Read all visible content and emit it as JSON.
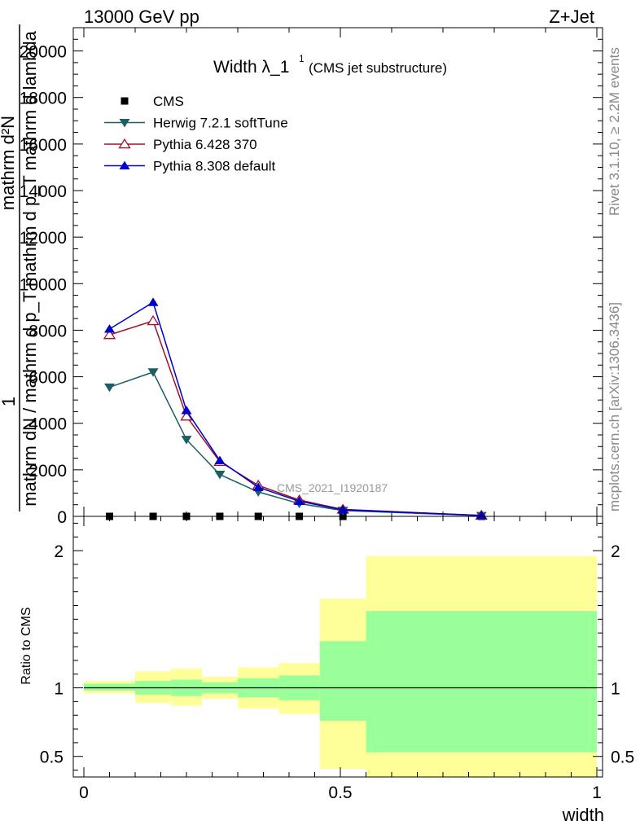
{
  "header": {
    "left": "13000 GeV pp",
    "right": "Z+Jet"
  },
  "side_labels": {
    "rivet": "Rivet 3.1.10, ≥ 2.2M events",
    "mcplots": "mcplots.cern.ch [arXiv:1306.3436]"
  },
  "watermark": "CMS_2021_I1920187",
  "chart_data": [
    {
      "type": "line",
      "panel": "main",
      "title": "Width λ_1",
      "title_sup": "1",
      "title_suffix": "(CMS jet substructure)",
      "ylabel_line1": "1",
      "ylabel_line2": "mathrm d²N",
      "ylabel_line3": "mathrm dN / mathrm d p_T mathrm d p_T mathrm d lambda",
      "xlim": [
        0,
        1
      ],
      "ylim": [
        0,
        21000
      ],
      "yticks": [
        0,
        2000,
        4000,
        6000,
        8000,
        10000,
        12000,
        14000,
        16000,
        18000,
        20000
      ],
      "ytick_labels": [
        "0",
        "2000",
        "4000",
        "6000",
        "8000",
        "10000",
        "12000",
        "14000",
        "16000",
        "18000",
        "20000"
      ],
      "legend_position": "top-left",
      "series": [
        {
          "name": "CMS",
          "color": "#000000",
          "marker": "square",
          "x": [
            0.05,
            0.135,
            0.2,
            0.265,
            0.34,
            0.42,
            0.505,
            0.775
          ],
          "y": [
            0,
            0,
            0,
            0,
            0,
            0,
            0,
            0
          ]
        },
        {
          "name": "Herwig 7.2.1 softTune",
          "color": "#1b5e63",
          "marker": "triangle-down",
          "x": [
            0.05,
            0.135,
            0.2,
            0.265,
            0.34,
            0.42,
            0.505,
            0.775
          ],
          "y": [
            5550,
            6200,
            3300,
            1800,
            1050,
            550,
            250,
            30
          ]
        },
        {
          "name": "Pythia 6.428 370",
          "color": "#a0102a",
          "marker": "triangle-open",
          "x": [
            0.05,
            0.135,
            0.2,
            0.265,
            0.34,
            0.42,
            0.505,
            0.775
          ],
          "y": [
            7800,
            8400,
            4300,
            2350,
            1330,
            700,
            300,
            40
          ]
        },
        {
          "name": "Pythia 8.308 default",
          "color": "#0000cc",
          "marker": "triangle-up",
          "x": [
            0.05,
            0.135,
            0.2,
            0.265,
            0.34,
            0.42,
            0.505,
            0.775
          ],
          "y": [
            8050,
            9200,
            4550,
            2400,
            1250,
            650,
            280,
            40
          ]
        }
      ]
    },
    {
      "type": "area",
      "panel": "ratio",
      "ylabel": "Ratio to CMS",
      "xlabel": "width",
      "xlim": [
        0,
        1
      ],
      "ylim": [
        0.35,
        2.25
      ],
      "xticks": [
        0,
        0.5,
        1
      ],
      "xtick_labels": [
        "0",
        "0.5",
        "1"
      ],
      "yticks": [
        0.5,
        1,
        2
      ],
      "ytick_labels": [
        "0.5",
        "1",
        "2"
      ],
      "bins": [
        {
          "x0": 0.0,
          "x1": 0.1,
          "stat_lo": 0.98,
          "stat_hi": 1.03,
          "tot_lo": 0.96,
          "tot_hi": 1.05
        },
        {
          "x0": 0.1,
          "x1": 0.17,
          "stat_lo": 0.95,
          "stat_hi": 1.05,
          "tot_lo": 0.89,
          "tot_hi": 1.12
        },
        {
          "x0": 0.17,
          "x1": 0.23,
          "stat_lo": 0.94,
          "stat_hi": 1.06,
          "tot_lo": 0.87,
          "tot_hi": 1.14
        },
        {
          "x0": 0.23,
          "x1": 0.3,
          "stat_lo": 0.96,
          "stat_hi": 1.04,
          "tot_lo": 0.92,
          "tot_hi": 1.08
        },
        {
          "x0": 0.3,
          "x1": 0.38,
          "stat_lo": 0.93,
          "stat_hi": 1.07,
          "tot_lo": 0.85,
          "tot_hi": 1.15
        },
        {
          "x0": 0.38,
          "x1": 0.46,
          "stat_lo": 0.91,
          "stat_hi": 1.09,
          "tot_lo": 0.81,
          "tot_hi": 1.18
        },
        {
          "x0": 0.46,
          "x1": 0.55,
          "stat_lo": 0.76,
          "stat_hi": 1.34,
          "tot_lo": 0.41,
          "tot_hi": 1.65
        },
        {
          "x0": 0.55,
          "x1": 1.0,
          "stat_lo": 0.53,
          "stat_hi": 1.56,
          "tot_lo": 0.35,
          "tot_hi": 1.96
        }
      ],
      "stat_color": "#99ff99",
      "tot_color": "#ffff99",
      "reference": 1
    }
  ]
}
